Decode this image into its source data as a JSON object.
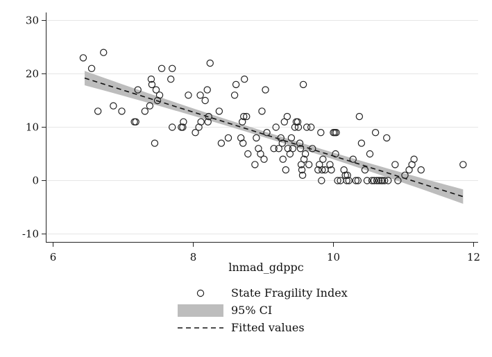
{
  "chart_data": {
    "type": "scatter",
    "xlabel": "lnmad_gdppc",
    "ylabel": "",
    "xlim": [
      6,
      12
    ],
    "ylim": [
      -11,
      32
    ],
    "x_ticks": [
      6,
      8,
      10,
      12
    ],
    "y_ticks": [
      -10,
      0,
      10,
      20,
      30
    ],
    "grid": "horizontal",
    "legend_position": "bottom",
    "fit": {
      "x0": 6.45,
      "y0": 19.2,
      "x1": 11.85,
      "y1": -3.0
    },
    "ci_halfwidth": {
      "at_ends": 1.35,
      "at_center": 0.55
    },
    "colors": {
      "ci_band": "#bdbdbd",
      "marker": "#222222",
      "grid": "#e6e6e6"
    },
    "legend": [
      {
        "key": "marker",
        "label": "State Fragility Index"
      },
      {
        "key": "band",
        "label": "95% CI"
      },
      {
        "key": "line",
        "label": "Fitted values"
      }
    ],
    "series": [
      {
        "name": "State Fragility Index",
        "points": [
          [
            6.43,
            23
          ],
          [
            6.55,
            21
          ],
          [
            6.64,
            13
          ],
          [
            6.72,
            24
          ],
          [
            6.86,
            14
          ],
          [
            6.98,
            13
          ],
          [
            7.16,
            11
          ],
          [
            7.18,
            11
          ],
          [
            7.21,
            17
          ],
          [
            7.31,
            13
          ],
          [
            7.38,
            14
          ],
          [
            7.4,
            19
          ],
          [
            7.41,
            18
          ],
          [
            7.45,
            7
          ],
          [
            7.47,
            17
          ],
          [
            7.49,
            15
          ],
          [
            7.52,
            16
          ],
          [
            7.55,
            21
          ],
          [
            7.7,
            21
          ],
          [
            7.68,
            19
          ],
          [
            7.7,
            10
          ],
          [
            7.83,
            10
          ],
          [
            7.85,
            10
          ],
          [
            7.86,
            11
          ],
          [
            7.93,
            16
          ],
          [
            8.03,
            9
          ],
          [
            8.08,
            10
          ],
          [
            8.1,
            16
          ],
          [
            8.11,
            11
          ],
          [
            8.17,
            15
          ],
          [
            8.2,
            17
          ],
          [
            8.21,
            11
          ],
          [
            8.24,
            22
          ],
          [
            8.22,
            12
          ],
          [
            8.37,
            13
          ],
          [
            8.4,
            7
          ],
          [
            8.5,
            8
          ],
          [
            8.59,
            16
          ],
          [
            8.61,
            18
          ],
          [
            8.68,
            8
          ],
          [
            8.7,
            11
          ],
          [
            8.72,
            12
          ],
          [
            8.73,
            19
          ],
          [
            8.76,
            12
          ],
          [
            8.71,
            7
          ],
          [
            8.78,
            5
          ],
          [
            8.88,
            3
          ],
          [
            8.9,
            8
          ],
          [
            8.93,
            6
          ],
          [
            8.96,
            5
          ],
          [
            8.98,
            13
          ],
          [
            9.01,
            4
          ],
          [
            9.03,
            17
          ],
          [
            9.05,
            9
          ],
          [
            9.15,
            6
          ],
          [
            9.18,
            10
          ],
          [
            9.22,
            6
          ],
          [
            9.25,
            8
          ],
          [
            9.27,
            7
          ],
          [
            9.28,
            4
          ],
          [
            9.3,
            11
          ],
          [
            9.32,
            2
          ],
          [
            9.34,
            12
          ],
          [
            9.35,
            6
          ],
          [
            9.38,
            5
          ],
          [
            9.4,
            8
          ],
          [
            9.42,
            6
          ],
          [
            9.45,
            10
          ],
          [
            9.47,
            11
          ],
          [
            9.49,
            11
          ],
          [
            9.5,
            10
          ],
          [
            9.52,
            7
          ],
          [
            9.53,
            6
          ],
          [
            9.54,
            3
          ],
          [
            9.55,
            2
          ],
          [
            9.56,
            1
          ],
          [
            9.57,
            18
          ],
          [
            9.58,
            4
          ],
          [
            9.6,
            5
          ],
          [
            9.62,
            10
          ],
          [
            9.65,
            3
          ],
          [
            9.68,
            10
          ],
          [
            9.7,
            6
          ],
          [
            9.78,
            2
          ],
          [
            9.8,
            3
          ],
          [
            9.82,
            9
          ],
          [
            9.83,
            0
          ],
          [
            9.84,
            2
          ],
          [
            9.85,
            4
          ],
          [
            9.88,
            2
          ],
          [
            9.95,
            3
          ],
          [
            9.97,
            2
          ],
          [
            10.0,
            9
          ],
          [
            10.02,
            9
          ],
          [
            10.04,
            9
          ],
          [
            10.03,
            5
          ],
          [
            10.06,
            0
          ],
          [
            10.1,
            0
          ],
          [
            10.15,
            2
          ],
          [
            10.17,
            1
          ],
          [
            10.19,
            0
          ],
          [
            10.2,
            1
          ],
          [
            10.22,
            0
          ],
          [
            10.28,
            4
          ],
          [
            10.32,
            0
          ],
          [
            10.35,
            0
          ],
          [
            10.37,
            12
          ],
          [
            10.4,
            7
          ],
          [
            10.45,
            2
          ],
          [
            10.48,
            0
          ],
          [
            10.52,
            5
          ],
          [
            10.55,
            0
          ],
          [
            10.58,
            0
          ],
          [
            10.6,
            9
          ],
          [
            10.62,
            0
          ],
          [
            10.65,
            0
          ],
          [
            10.68,
            0
          ],
          [
            10.7,
            0
          ],
          [
            10.73,
            0
          ],
          [
            10.76,
            8
          ],
          [
            10.78,
            0
          ],
          [
            10.88,
            3
          ],
          [
            10.92,
            0
          ],
          [
            11.02,
            1
          ],
          [
            11.08,
            2
          ],
          [
            11.12,
            3
          ],
          [
            11.15,
            4
          ],
          [
            11.25,
            2
          ],
          [
            11.85,
            3
          ]
        ]
      }
    ]
  }
}
